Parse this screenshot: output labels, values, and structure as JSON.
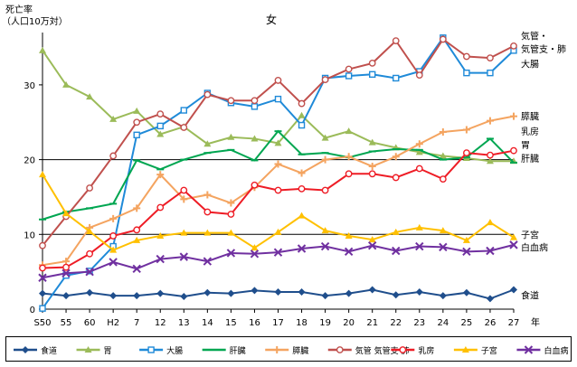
{
  "chart_data": {
    "type": "line",
    "title": "女",
    "ylabel": "死亡率\n（人口10万対）",
    "xunit": "年",
    "ylim": [
      0,
      37
    ],
    "yticks": [
      0,
      10,
      20,
      30
    ],
    "grid_y": [
      10,
      20
    ],
    "categories": [
      "S50",
      "55",
      "60",
      "H2",
      "7",
      "12",
      "13",
      "14",
      "15",
      "16",
      "17",
      "18",
      "19",
      "20",
      "21",
      "22",
      "23",
      "24",
      "25",
      "26",
      "27"
    ],
    "series": [
      {
        "name": "食道",
        "color": "#1f4e8c",
        "marker": "diamond",
        "values": [
          2.1,
          1.8,
          2.2,
          1.8,
          1.8,
          2.1,
          1.7,
          2.2,
          2.1,
          2.5,
          2.3,
          2.3,
          1.8,
          2.1,
          2.6,
          1.9,
          2.3,
          1.8,
          2.2,
          1.4,
          2.6
        ]
      },
      {
        "name": "胃",
        "color": "#9bbb59",
        "marker": "triangle",
        "values": [
          34.6,
          30.0,
          28.4,
          25.4,
          26.5,
          23.4,
          24.4,
          22.1,
          23.0,
          22.8,
          22.2,
          25.9,
          22.9,
          23.8,
          22.3,
          21.6,
          21.0,
          20.5,
          20.2,
          19.8,
          19.8
        ]
      },
      {
        "name": "大腸",
        "color": "#1f8ad8",
        "marker": "square",
        "values": [
          0.1,
          4.5,
          5.1,
          8.4,
          23.3,
          24.5,
          26.6,
          28.9,
          27.6,
          27.1,
          28.1,
          24.6,
          30.9,
          31.2,
          31.4,
          30.9,
          31.8,
          36.3,
          31.6,
          31.6,
          34.6
        ]
      },
      {
        "name": "肝臓",
        "color": "#00a651",
        "marker": "line",
        "values": [
          12.0,
          13.0,
          13.5,
          14.1,
          19.9,
          18.7,
          20.0,
          20.9,
          21.3,
          19.9,
          23.8,
          20.7,
          20.9,
          20.3,
          21.1,
          21.4,
          21.3,
          20.0,
          20.3,
          22.8,
          19.6
        ]
      },
      {
        "name": "膵臓",
        "color": "#f4a460",
        "marker": "cross",
        "values": [
          5.9,
          6.4,
          10.9,
          12.1,
          13.5,
          18.0,
          14.7,
          15.3,
          14.2,
          16.3,
          19.4,
          18.2,
          20.0,
          20.4,
          19.1,
          20.4,
          22.1,
          23.7,
          24.0,
          25.2,
          25.8
        ]
      },
      {
        "name": "気管 気管支 肺",
        "color": "#c0504d",
        "marker": "circle-open",
        "values": [
          8.5,
          12.4,
          16.2,
          20.5,
          25.0,
          26.1,
          24.3,
          28.7,
          27.9,
          27.9,
          30.6,
          27.5,
          30.7,
          32.1,
          32.9,
          35.9,
          31.3,
          36.1,
          33.8,
          33.6,
          35.2
        ]
      },
      {
        "name": "乳房",
        "color": "#ee1c25",
        "marker": "circle-open",
        "values": [
          5.5,
          5.6,
          7.4,
          9.8,
          10.6,
          13.6,
          15.9,
          13.0,
          12.7,
          16.6,
          15.9,
          16.1,
          15.9,
          18.1,
          18.1,
          17.6,
          18.8,
          17.4,
          20.9,
          20.6,
          21.2
        ]
      },
      {
        "name": "子宮",
        "color": "#ffc000",
        "marker": "triangle",
        "values": [
          18.0,
          12.8,
          10.4,
          7.9,
          9.2,
          9.8,
          10.2,
          10.2,
          10.2,
          8.2,
          10.3,
          12.5,
          10.5,
          9.8,
          9.3,
          10.3,
          10.9,
          10.5,
          9.2,
          11.6,
          9.6
        ]
      },
      {
        "name": "白血病",
        "color": "#7030a0",
        "marker": "x",
        "values": [
          4.2,
          4.8,
          5.0,
          6.3,
          5.4,
          6.7,
          7.0,
          6.4,
          7.5,
          7.4,
          7.6,
          8.1,
          8.4,
          7.7,
          8.5,
          7.8,
          8.4,
          8.3,
          7.7,
          7.8,
          8.6
        ]
      }
    ],
    "right_labels": [
      {
        "text": "気管・",
        "value": 36.6
      },
      {
        "text": "気管支・肺",
        "value": 34.8
      },
      {
        "text": "大腸",
        "value": 32.8
      },
      {
        "text": "膵臓",
        "value": 25.8
      },
      {
        "text": "乳房",
        "value": 23.8
      },
      {
        "text": "胃",
        "value": 22.0
      },
      {
        "text": "肝臓",
        "value": 20.2
      },
      {
        "text": "子宮",
        "value": 10.0
      },
      {
        "text": "白血病",
        "value": 8.3
      },
      {
        "text": "食道",
        "value": 1.9
      }
    ],
    "legend_position": "bottom"
  }
}
